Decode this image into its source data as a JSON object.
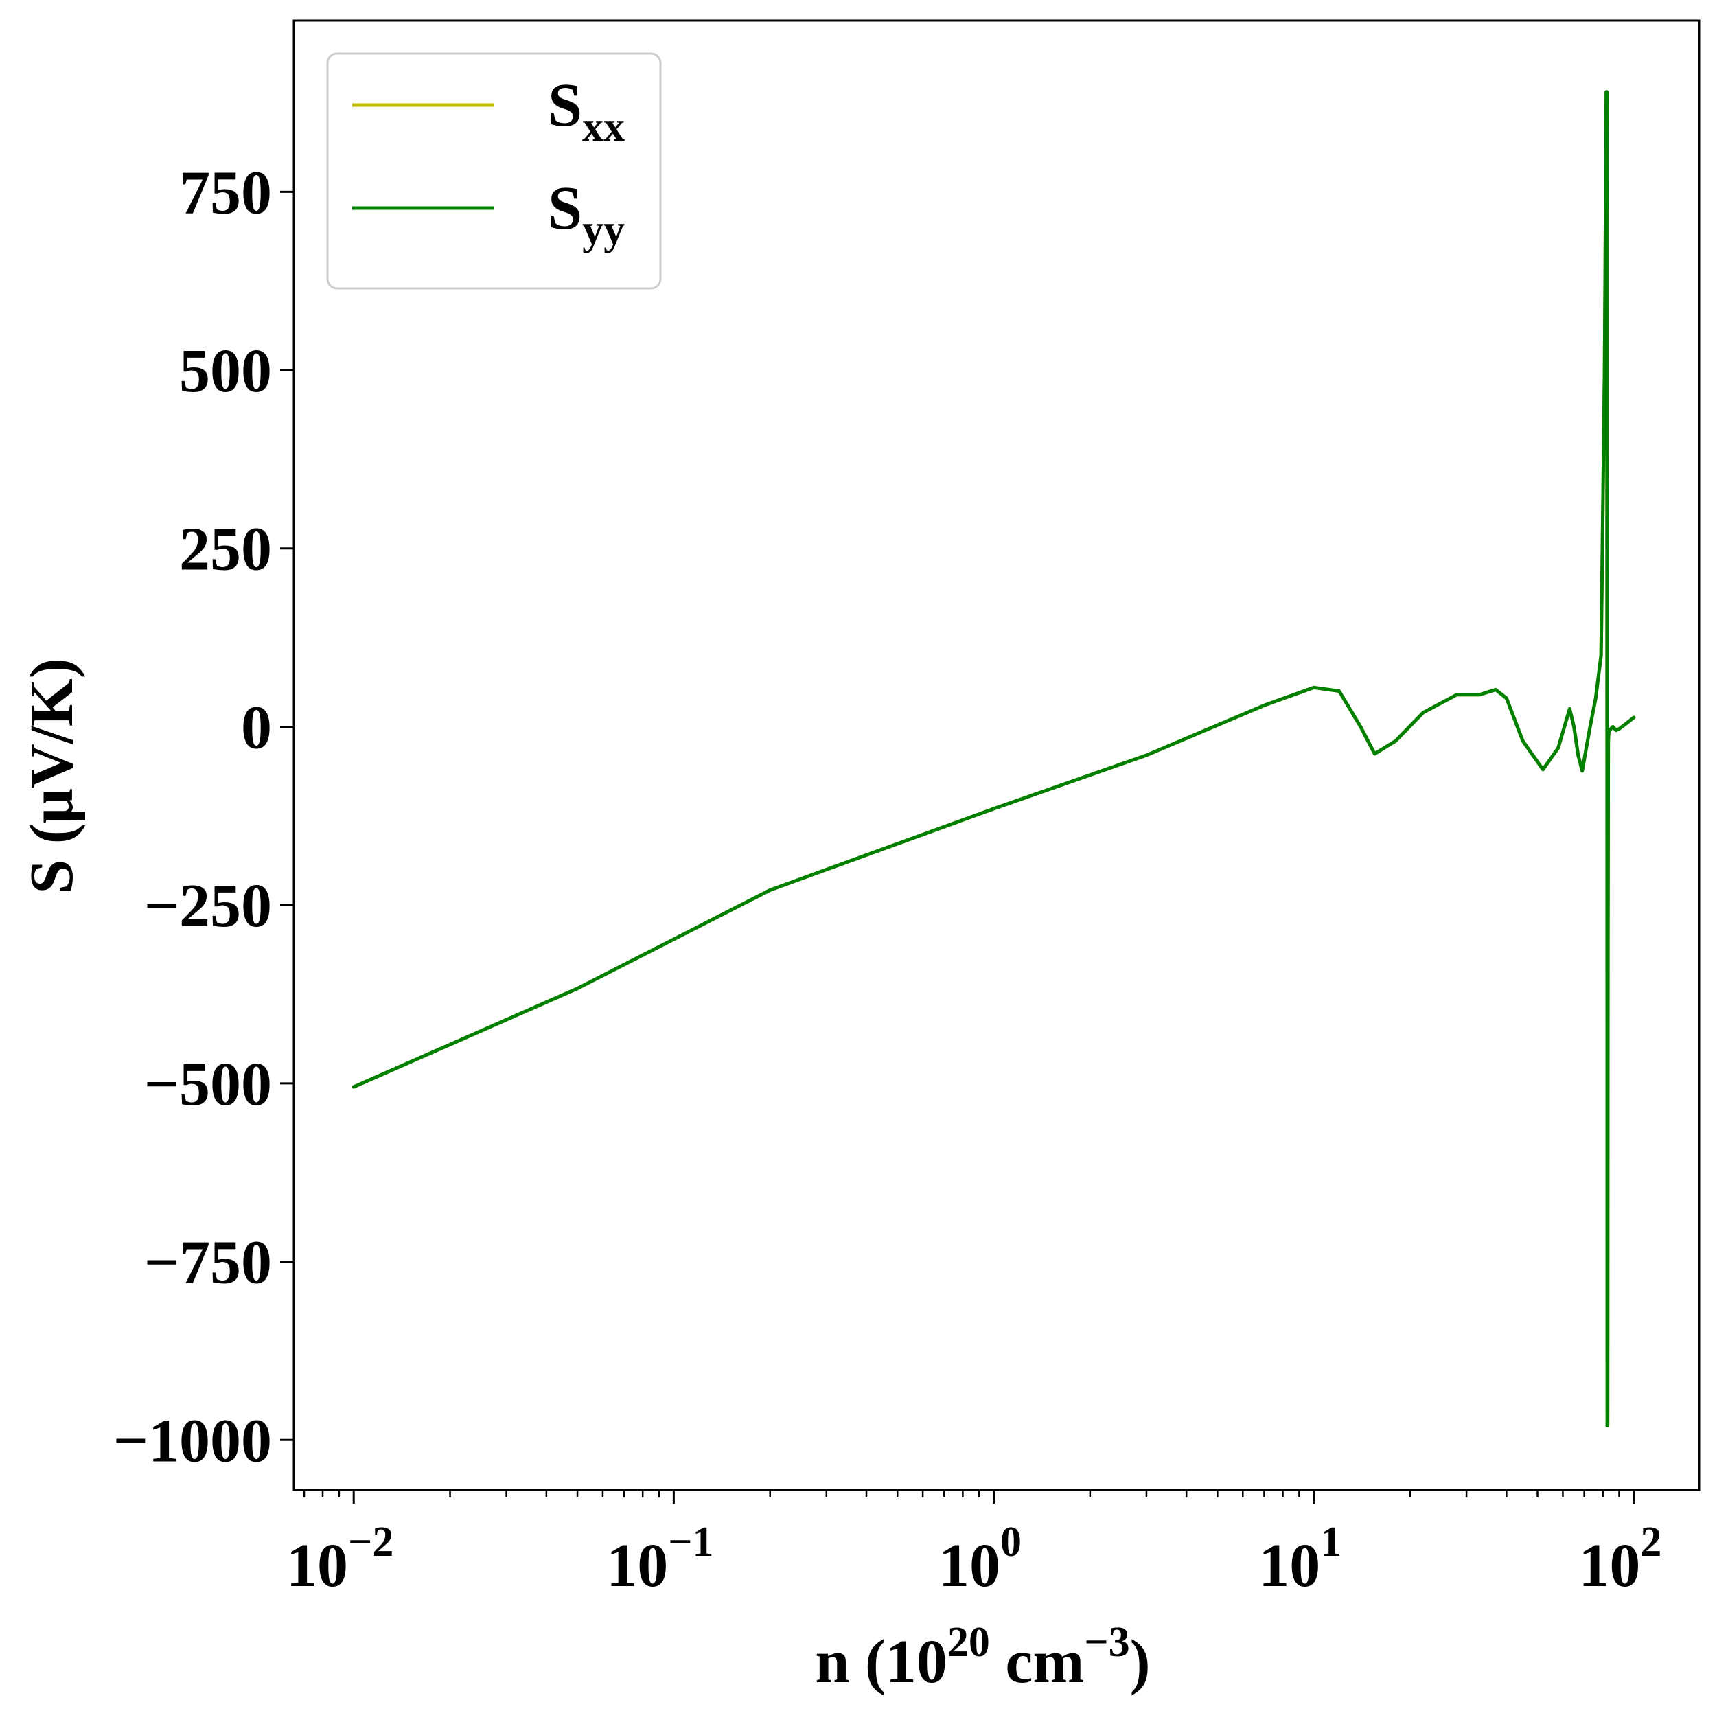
{
  "chart_data": {
    "type": "line",
    "title": "",
    "xlabel": {
      "base": "n (10",
      "exp1": "20",
      "mid": " cm",
      "exp2": "−3",
      "end": ")"
    },
    "ylabel": "S (μV/K)",
    "xscale": "log",
    "xlim": [
      0.0065,
      160
    ],
    "ylim": [
      -1070,
      990
    ],
    "x_ticks": [
      {
        "value": 0.01,
        "base": "10",
        "exp": "−2"
      },
      {
        "value": 0.1,
        "base": "10",
        "exp": "−1"
      },
      {
        "value": 1,
        "base": "10",
        "exp": "0"
      },
      {
        "value": 10,
        "base": "10",
        "exp": "1"
      },
      {
        "value": 100,
        "base": "10",
        "exp": "2"
      }
    ],
    "y_ticks": [
      {
        "value": 750,
        "label": "750"
      },
      {
        "value": 500,
        "label": "500"
      },
      {
        "value": 250,
        "label": "250"
      },
      {
        "value": 0,
        "label": "0"
      },
      {
        "value": -250,
        "label": "−250"
      },
      {
        "value": -500,
        "label": "−500"
      },
      {
        "value": -750,
        "label": "−750"
      },
      {
        "value": -1000,
        "label": "−1000"
      }
    ],
    "grid": false,
    "legend_position": "top-left",
    "series": [
      {
        "name": "S",
        "subscript": "xx",
        "color": "#bfbf00",
        "x": [
          0.01,
          0.05,
          0.2,
          1,
          3,
          7,
          10,
          12,
          14,
          15.5,
          18,
          22,
          28,
          33,
          37,
          40,
          45,
          52,
          58,
          63,
          65,
          67,
          69,
          71,
          73,
          76,
          79,
          81,
          82,
          82.4,
          82.6,
          82.8,
          83,
          83.2,
          83.5,
          84,
          86,
          88,
          90,
          95,
          100
        ],
        "values": [
          -505,
          -367,
          -229,
          -115,
          -40,
          30,
          55,
          50,
          0,
          -38,
          -20,
          20,
          45,
          45,
          52,
          40,
          -20,
          -60,
          -30,
          25,
          0,
          -40,
          -62,
          -30,
          0,
          40,
          100,
          500,
          890,
          890,
          -980,
          -980,
          -300,
          -20,
          -8,
          -5,
          0,
          -5,
          -3,
          5,
          13
        ]
      },
      {
        "name": "S",
        "subscript": "yy",
        "color": "#007f00",
        "x": [
          0.01,
          0.05,
          0.2,
          1,
          3,
          7,
          10,
          12,
          14,
          15.5,
          18,
          22,
          28,
          33,
          37,
          40,
          45,
          52,
          58,
          63,
          65,
          67,
          69,
          71,
          73,
          76,
          79,
          81,
          82,
          82.4,
          82.6,
          82.8,
          83,
          83.2,
          83.5,
          84,
          86,
          88,
          90,
          95,
          100
        ],
        "values": [
          -505,
          -367,
          -229,
          -115,
          -40,
          30,
          55,
          50,
          0,
          -38,
          -20,
          20,
          45,
          45,
          52,
          40,
          -20,
          -60,
          -30,
          25,
          0,
          -40,
          -62,
          -30,
          0,
          40,
          100,
          500,
          890,
          890,
          -980,
          -980,
          -300,
          -20,
          -8,
          -5,
          0,
          -5,
          -3,
          5,
          13
        ]
      }
    ]
  }
}
